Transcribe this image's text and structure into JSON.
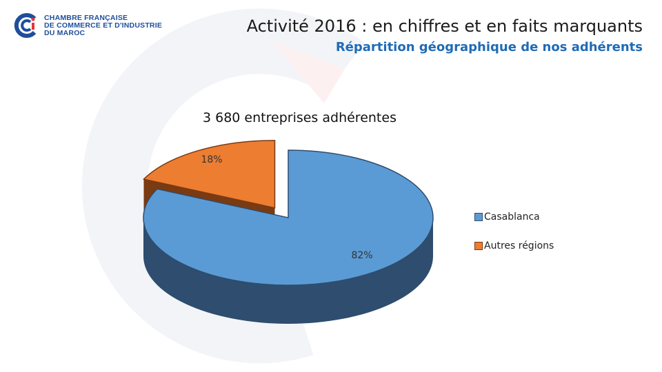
{
  "header": {
    "logo_lines": [
      "CHAMBRE FRANÇAISE",
      "DE COMMERCE ET D'INDUSTRIE",
      "DU MAROC"
    ],
    "title": "Activité 2016 : en chiffres et en faits marquants",
    "subtitle": "Répartition géographique de nos adhérents"
  },
  "colors": {
    "brand_blue": "#1f4e9a",
    "brand_red": "#e3343f",
    "subtitle_blue": "#1f6bb5"
  },
  "chart_data": {
    "type": "pie",
    "title": "3 680 entreprises adhérentes",
    "style": "3d-exploded",
    "slices": [
      {
        "label": "Casablanca",
        "value": 82,
        "value_label": "82%",
        "color": "#5b9bd5",
        "side_color": "#2e4d6f"
      },
      {
        "label": "Autres régions",
        "value": 18,
        "value_label": "18%",
        "color": "#ed7d31",
        "side_color": "#7a3a12"
      }
    ],
    "legend_position": "right"
  }
}
